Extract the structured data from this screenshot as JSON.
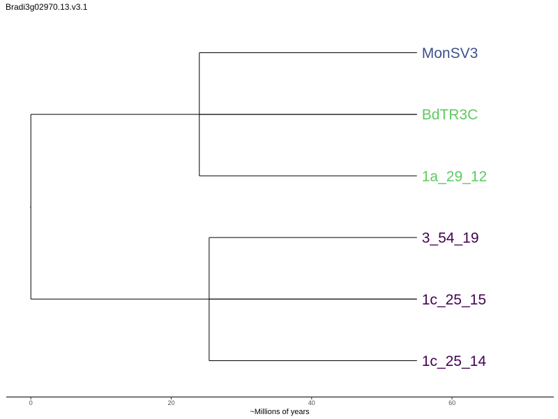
{
  "title": "Bradi3g02970.13.v3.1",
  "chart_data": {
    "type": "dendrogram",
    "xlabel": "~Millions of years",
    "xticks": [
      0,
      20,
      40,
      60
    ],
    "xlim": [
      -3.5,
      74.5
    ],
    "leaves": [
      {
        "name": "MonSV3",
        "color": "#3b528b"
      },
      {
        "name": "BdTR3C",
        "color": "#5ec962"
      },
      {
        "name": "1a_29_12",
        "color": "#5ec962"
      },
      {
        "name": "3_54_19",
        "color": "#440154"
      },
      {
        "name": "1c_25_15",
        "color": "#440154"
      },
      {
        "name": "1c_25_14",
        "color": "#440154"
      }
    ],
    "tip_x": 55,
    "nodes": [
      {
        "id": "root",
        "x": 0,
        "children": [
          "cladeA",
          "cladeB"
        ]
      },
      {
        "id": "cladeA",
        "x": 24,
        "children": [
          "MonSV3",
          "BdTR3C",
          "1a_29_12"
        ]
      },
      {
        "id": "cladeB",
        "x": 25.4,
        "children": [
          "3_54_19",
          "1c_25_15",
          "1c_25_14"
        ]
      }
    ]
  }
}
